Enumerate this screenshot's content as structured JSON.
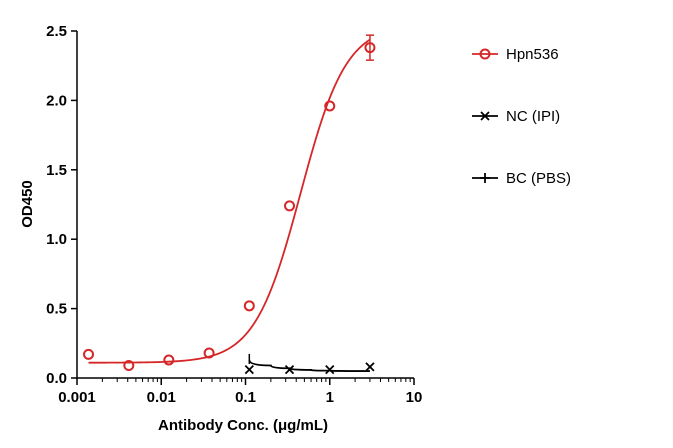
{
  "chart_data": {
    "type": "scatter",
    "title": "",
    "xlabel": "Antibody Conc. (μg/mL)",
    "ylabel": "OD450",
    "x_scale": "log",
    "xlim": [
      0.001,
      10
    ],
    "ylim": [
      0,
      2.5
    ],
    "x_ticks": [
      {
        "value": 0.001,
        "label": "0.001"
      },
      {
        "value": 0.01,
        "label": "0.01"
      },
      {
        "value": 0.1,
        "label": "0.1"
      },
      {
        "value": 1,
        "label": "1"
      },
      {
        "value": 10,
        "label": "10"
      }
    ],
    "y_ticks": [
      {
        "value": 0.0,
        "label": "0.0"
      },
      {
        "value": 0.5,
        "label": "0.5"
      },
      {
        "value": 1.0,
        "label": "1.0"
      },
      {
        "value": 1.5,
        "label": "1.5"
      },
      {
        "value": 2.0,
        "label": "2.0"
      },
      {
        "value": 2.5,
        "label": "2.5"
      }
    ],
    "grid": false,
    "legend_position": "right",
    "series": [
      {
        "name": "Hpn536",
        "color": "#d62728",
        "marker": "circle",
        "x": [
          0.00137,
          0.00412,
          0.0123,
          0.037,
          0.111,
          0.333,
          1.0,
          3.0
        ],
        "y": [
          0.17,
          0.09,
          0.13,
          0.18,
          0.52,
          1.24,
          1.96,
          2.38
        ],
        "error": [
          0,
          0,
          0,
          0,
          0,
          0,
          0,
          0.09
        ],
        "fit": {
          "model": "4PL",
          "bottom": 0.11,
          "top": 2.55,
          "ec50": 0.45,
          "hill": 1.6
        }
      },
      {
        "name": "NC (IPI)",
        "color": "#000000",
        "marker": "x",
        "x": [
          0.111,
          0.333,
          1.0,
          3.0
        ],
        "y": [
          0.06,
          0.06,
          0.06,
          0.08
        ],
        "fit": {
          "points": [
            [
              0.111,
              0.13
            ],
            [
              0.2,
              0.09
            ],
            [
              0.333,
              0.07
            ],
            [
              0.6,
              0.058
            ],
            [
              1.0,
              0.053
            ],
            [
              3.0,
              0.05
            ]
          ]
        }
      },
      {
        "name": "BC (PBS)",
        "color": "#000000",
        "marker": "plus",
        "x": [],
        "y": []
      }
    ]
  }
}
